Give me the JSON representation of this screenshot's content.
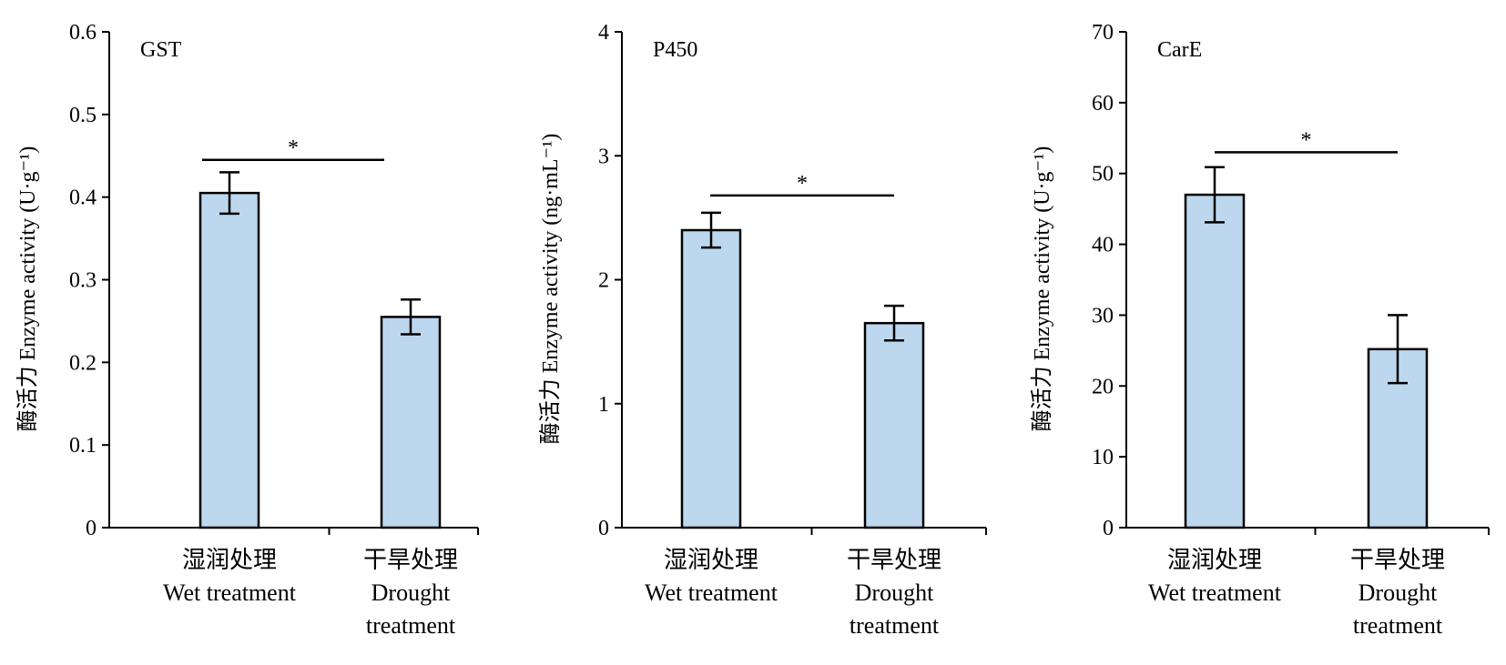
{
  "colors": {
    "bar_fill": "#bdd7ee",
    "stroke": "#000000",
    "background": "#ffffff"
  },
  "chart_data": [
    {
      "type": "bar",
      "title": "GST",
      "ylabel": "酶活力 Enzyme activity (U·g⁻¹)",
      "categories": [
        {
          "zh": "湿润处理",
          "en": [
            "Wet treatment"
          ]
        },
        {
          "zh": "干旱处理",
          "en": [
            "Drought",
            "treatment"
          ]
        }
      ],
      "values": [
        0.405,
        0.255
      ],
      "errors": [
        0.025,
        0.021
      ],
      "ylim": [
        0,
        0.6
      ],
      "yticks": [
        "0",
        "0.1",
        "0.2",
        "0.3",
        "0.4",
        "0.5",
        "0.6"
      ],
      "significance": {
        "label": "*",
        "y": 0.445
      },
      "grid": false
    },
    {
      "type": "bar",
      "title": "P450",
      "ylabel": "酶活力 Enzyme activity (ng·mL⁻¹)",
      "categories": [
        {
          "zh": "湿润处理",
          "en": [
            "Wet treatment"
          ]
        },
        {
          "zh": "干旱处理",
          "en": [
            "Drought",
            "treatment"
          ]
        }
      ],
      "values": [
        2.4,
        1.65
      ],
      "errors": [
        0.14,
        0.14
      ],
      "ylim": [
        0,
        4
      ],
      "yticks": [
        "0",
        "1",
        "2",
        "3",
        "4"
      ],
      "significance": {
        "label": "*",
        "y": 2.68
      },
      "grid": false
    },
    {
      "type": "bar",
      "title": "CarE",
      "ylabel": "酶活力 Enzyme activity (U·g⁻¹)",
      "categories": [
        {
          "zh": "湿润处理",
          "en": [
            "Wet treatment"
          ]
        },
        {
          "zh": "干旱处理",
          "en": [
            "Drought",
            "treatment"
          ]
        }
      ],
      "values": [
        47.0,
        25.2
      ],
      "errors": [
        3.9,
        4.8
      ],
      "ylim": [
        0,
        70
      ],
      "yticks": [
        "0",
        "10",
        "20",
        "30",
        "40",
        "50",
        "60",
        "70"
      ],
      "significance": {
        "label": "*",
        "y": 53.0
      },
      "grid": false
    }
  ]
}
